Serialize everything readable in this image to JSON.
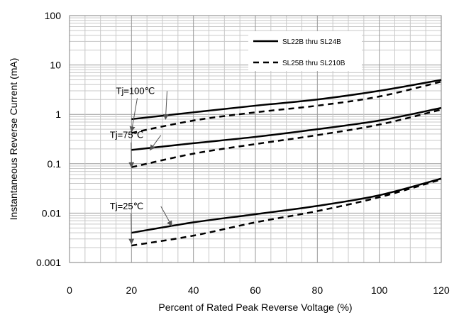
{
  "chart_data": {
    "type": "line",
    "y_scale": "log",
    "xlim": [
      0,
      120
    ],
    "ylim": [
      0.001,
      100
    ],
    "grid": "on",
    "legend_position": "top-right",
    "xlabel": "Percent of  Rated Peak Reverse Voltage (%)",
    "ylabel": "Instantaneous Reverse Current (mA)",
    "x_ticks": [
      "0",
      "20",
      "40",
      "60",
      "80",
      "100",
      "120"
    ],
    "y_ticks": [
      "0.001",
      "0.01",
      "0.1",
      "1",
      "10",
      "100"
    ],
    "legend": [
      {
        "label": "SL22B thru SL24B",
        "style": "solid"
      },
      {
        "label": "SL25B thru SL210B",
        "style": "dashed"
      }
    ],
    "series": [
      {
        "group": "Tj=100℃",
        "style": "solid",
        "x": [
          20,
          40,
          60,
          80,
          100,
          120
        ],
        "y": [
          0.8,
          1.1,
          1.5,
          2.0,
          3.0,
          5.0
        ]
      },
      {
        "group": "Tj=100℃",
        "style": "dashed",
        "x": [
          20,
          40,
          60,
          80,
          100,
          120
        ],
        "y": [
          0.42,
          0.75,
          1.1,
          1.5,
          2.3,
          4.6
        ]
      },
      {
        "group": "Tj=75℃",
        "style": "solid",
        "x": [
          20,
          40,
          60,
          80,
          100,
          120
        ],
        "y": [
          0.19,
          0.26,
          0.35,
          0.5,
          0.75,
          1.35
        ]
      },
      {
        "group": "Tj=75℃",
        "style": "dashed",
        "x": [
          20,
          40,
          60,
          80,
          100,
          120
        ],
        "y": [
          0.085,
          0.16,
          0.25,
          0.38,
          0.62,
          1.25
        ]
      },
      {
        "group": "Tj=25℃",
        "style": "solid",
        "x": [
          20,
          40,
          60,
          80,
          100,
          120
        ],
        "y": [
          0.004,
          0.0065,
          0.0095,
          0.014,
          0.023,
          0.05
        ]
      },
      {
        "group": "Tj=25℃",
        "style": "dashed",
        "x": [
          20,
          40,
          60,
          80,
          100,
          120
        ],
        "y": [
          0.0022,
          0.0035,
          0.0065,
          0.011,
          0.021,
          0.048
        ]
      }
    ],
    "annotations": [
      {
        "text": "Tj=100℃",
        "points_to_x": [
          31,
          20
        ],
        "points_to_y": [
          0.8,
          0.45
        ]
      },
      {
        "text": "Tj=75℃",
        "points_to_x": [
          26,
          20
        ],
        "points_to_y": [
          0.19,
          0.085
        ]
      },
      {
        "text": "Tj=25℃",
        "points_to_x": [
          33,
          20
        ],
        "points_to_y": [
          0.0055,
          0.0024
        ]
      }
    ]
  }
}
